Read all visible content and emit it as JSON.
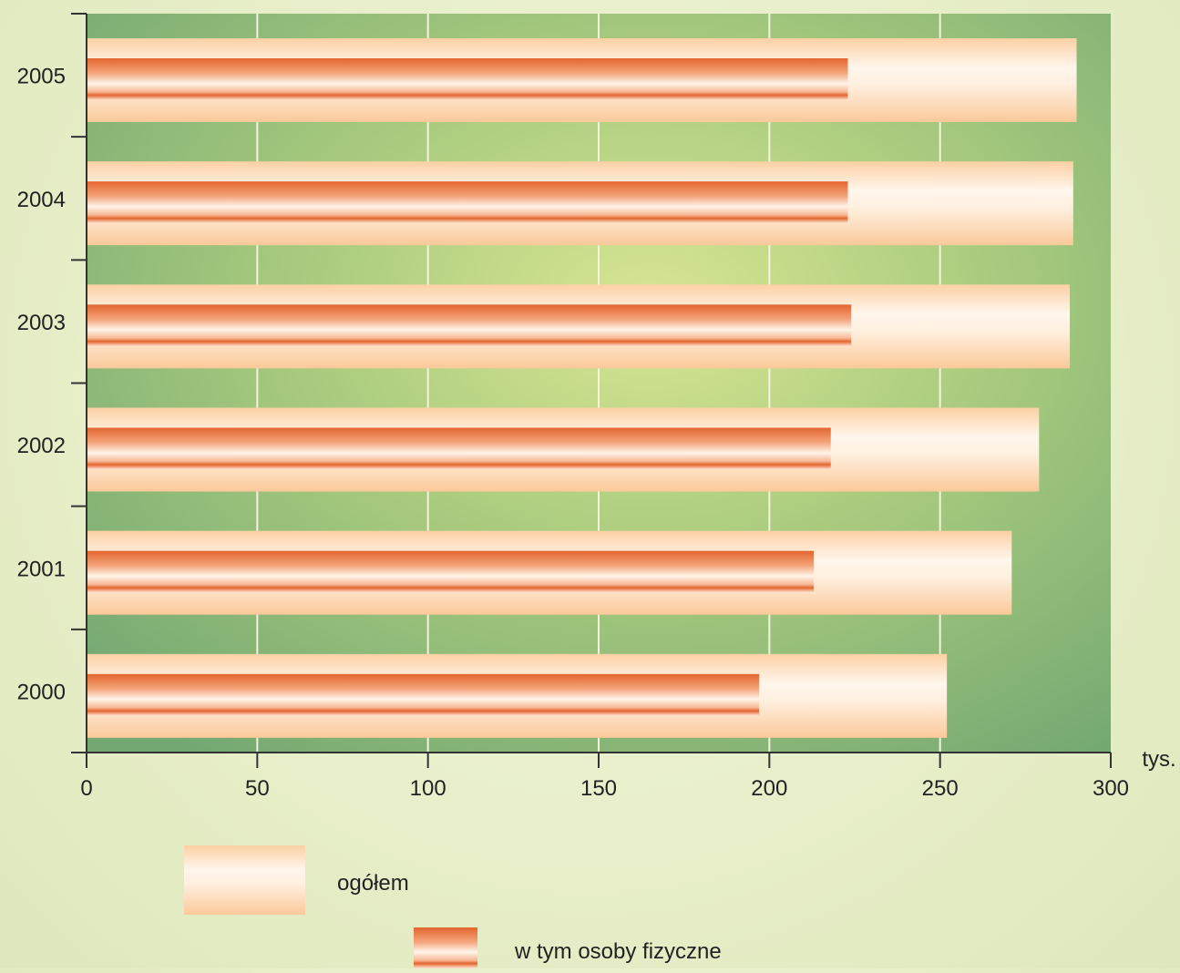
{
  "chart_data": {
    "type": "bar",
    "orientation": "horizontal",
    "categories": [
      "2005",
      "2004",
      "2003",
      "2002",
      "2001",
      "2000"
    ],
    "series": [
      {
        "name": "ogółem",
        "values": [
          290,
          289,
          288,
          279,
          271,
          252
        ]
      },
      {
        "name": "w tym osoby fizyczne",
        "values": [
          223,
          223,
          224,
          218,
          213,
          197
        ]
      }
    ],
    "x_ticks": [
      0,
      50,
      100,
      150,
      200,
      250,
      300
    ],
    "xlim": [
      0,
      300
    ],
    "x_unit": "tys.",
    "grid": true,
    "legend_position": "bottom"
  },
  "colors": {
    "plot_background": "#9fc47c",
    "total_bar": "#fdd2a8",
    "subset_bar": "#e8703c",
    "gridline": "#f4f4dc"
  }
}
